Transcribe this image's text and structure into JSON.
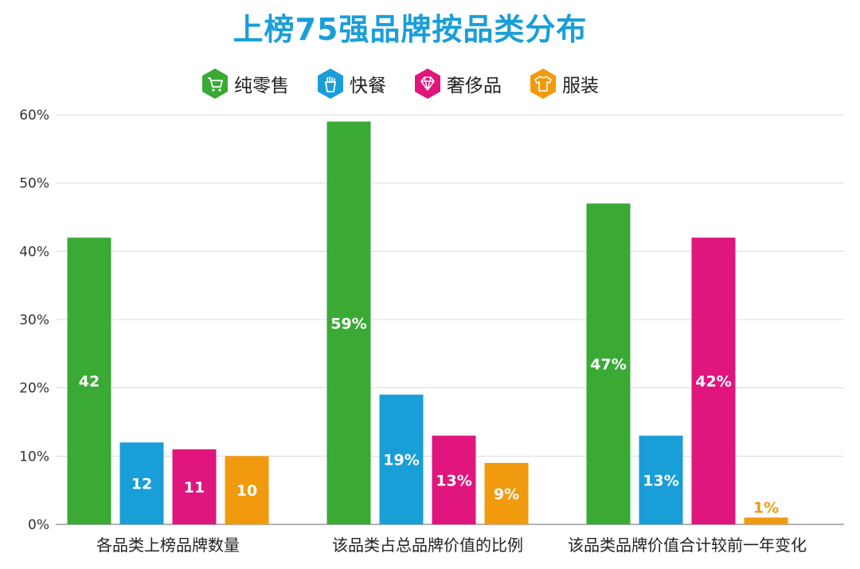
{
  "chart_data": {
    "type": "bar",
    "title": "上榜75强品牌按品类分布",
    "categories": [
      "各品类上榜品牌数量",
      "该品类占总品牌价值的比例",
      "该品类品牌价值合计较前一年变化"
    ],
    "series": [
      {
        "name": "纯零售",
        "color": "#3aaa35",
        "icon": "shopping-cart-icon",
        "values": [
          42,
          59,
          47
        ],
        "labels": [
          "42",
          "59%",
          "47%"
        ]
      },
      {
        "name": "快餐",
        "color": "#1a9ed8",
        "icon": "fries-icon",
        "values": [
          12,
          19,
          13
        ],
        "labels": [
          "12",
          "19%",
          "13%"
        ]
      },
      {
        "name": "奢侈品",
        "color": "#e0157d",
        "icon": "diamond-icon",
        "values": [
          11,
          13,
          42
        ],
        "labels": [
          "11",
          "13%",
          "42%"
        ]
      },
      {
        "name": "服装",
        "color": "#f29a0e",
        "icon": "tshirt-icon",
        "values": [
          10,
          9,
          1
        ],
        "labels": [
          "10",
          "9%",
          "1%"
        ]
      }
    ],
    "yticks": [
      "0%",
      "10%",
      "20%",
      "30%",
      "40%",
      "50%",
      "60%"
    ],
    "ylim": [
      0,
      60
    ],
    "grid": true,
    "legend_position": "top"
  }
}
